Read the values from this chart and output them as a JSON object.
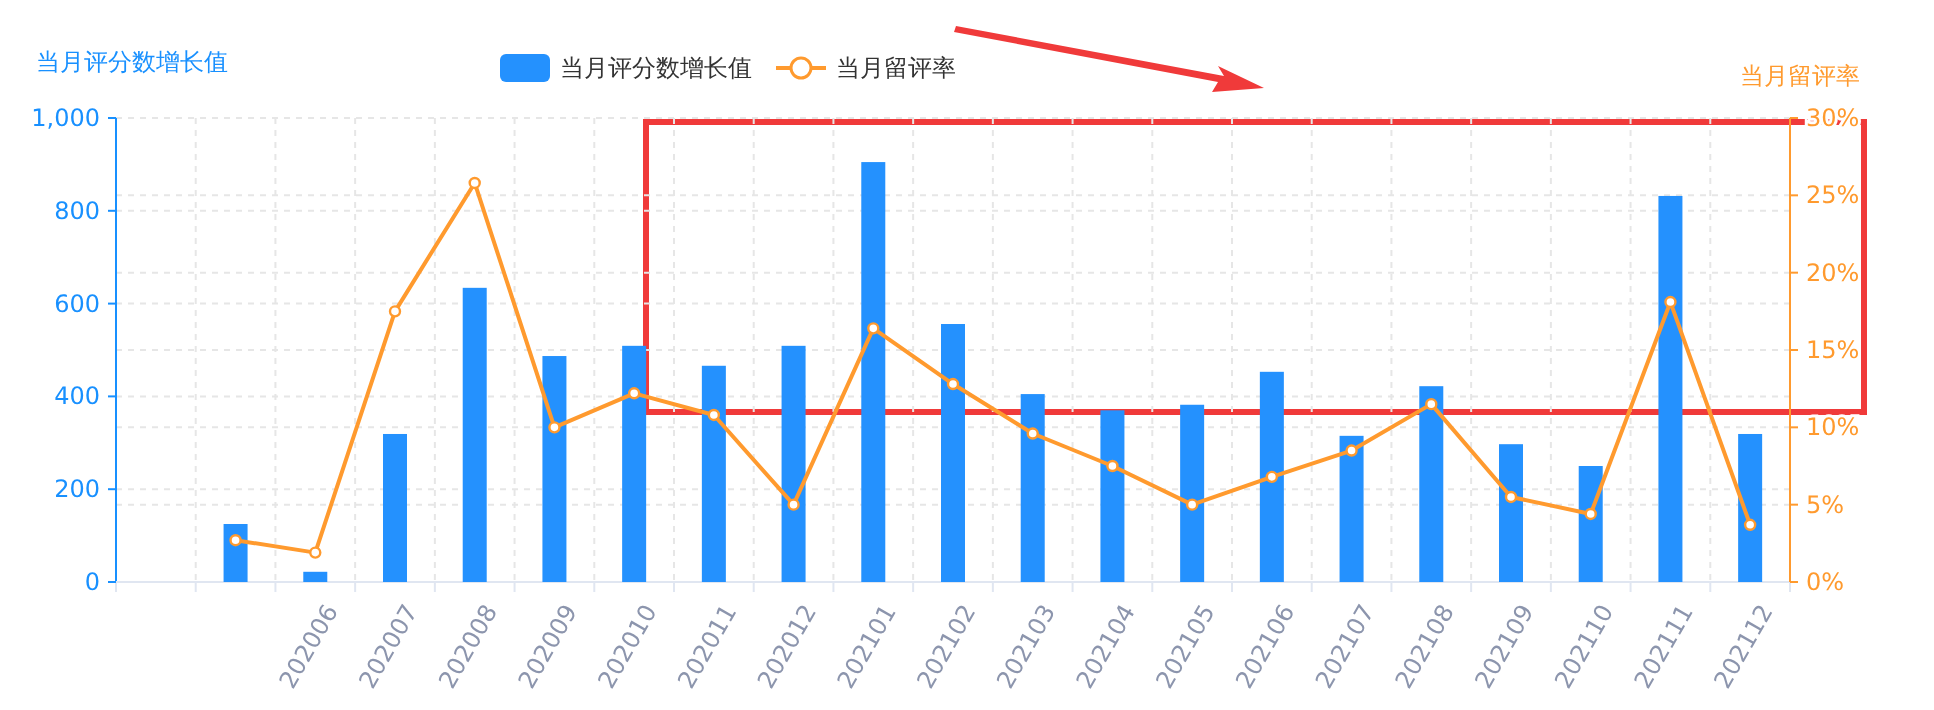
{
  "chart_data": {
    "type": "bar",
    "ylabel": "当月评分数增长值",
    "y2label": "当月留评率",
    "categories": [
      null,
      null,
      "202006",
      "202007",
      "202008",
      "202009",
      "202010",
      "202011",
      "202012",
      "202101",
      "202102",
      "202103",
      "202104",
      "202105",
      "202106",
      "202107",
      "202108",
      "202109",
      "202110",
      "202111",
      "202112"
    ],
    "series": [
      {
        "name": "当月评分数增长值",
        "color": "#2491fe",
        "values": [
          null,
          125,
          22,
          319,
          634,
          487,
          509,
          466,
          509,
          905,
          556,
          405,
          370,
          382,
          453,
          315,
          422,
          297,
          250,
          832,
          319
        ]
      },
      {
        "name": "当月留评率",
        "type": "line",
        "axis": "y2",
        "color": "#ff9a2e",
        "marker": "circle",
        "values": [
          null,
          2.7,
          1.9,
          17.5,
          25.8,
          10.0,
          12.2,
          10.8,
          5.0,
          16.4,
          12.8,
          9.6,
          7.5,
          5.0,
          6.8,
          8.5,
          11.5,
          5.5,
          4.4,
          18.1,
          3.7
        ]
      }
    ],
    "ylim": [
      0,
      1000
    ],
    "yticks": [
      0,
      200,
      400,
      600,
      800,
      {
        "value": 1000,
        "label": "1,000"
      }
    ],
    "y2lim": [
      0,
      30
    ],
    "y2ticks": [
      {
        "value": 0,
        "label": "0%"
      },
      {
        "value": 5,
        "label": "5%"
      },
      {
        "value": 10,
        "label": "10%"
      },
      {
        "value": 15,
        "label": "15%"
      },
      {
        "value": 20,
        "label": "20%"
      },
      {
        "value": 25,
        "label": "25%"
      },
      {
        "value": 30,
        "label": "30%"
      }
    ],
    "grid": true,
    "legend": "top"
  }
}
